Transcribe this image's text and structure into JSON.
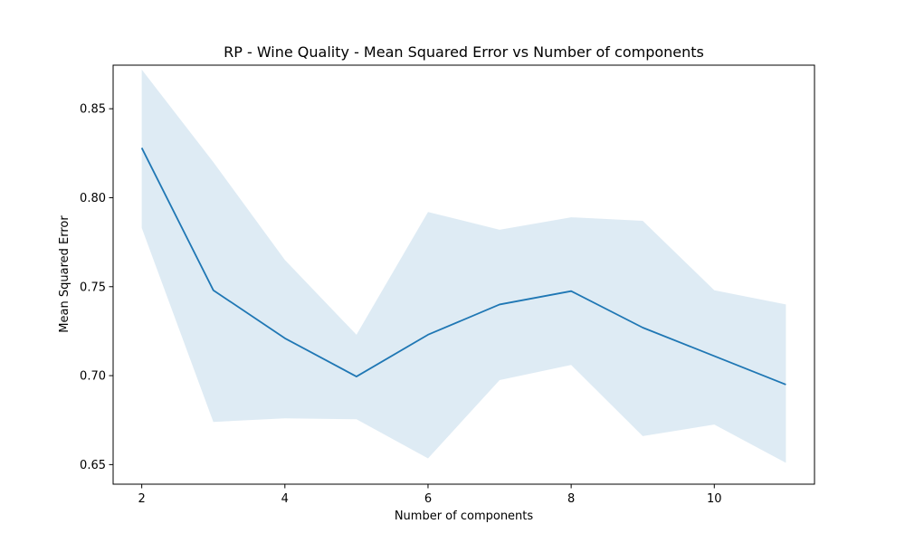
{
  "chart_data": {
    "type": "line",
    "title": "RP - Wine Quality - Mean Squared Error vs Number of components",
    "xlabel": "Number of components",
    "ylabel": "Mean Squared Error",
    "x": [
      2,
      3,
      4,
      5,
      6,
      7,
      8,
      9,
      10,
      11
    ],
    "series": [
      {
        "values": [
          0.828,
          0.748,
          0.721,
          0.6995,
          0.723,
          0.74,
          0.7475,
          0.727,
          0.711,
          0.695
        ],
        "band_upper": [
          0.872,
          0.82,
          0.765,
          0.723,
          0.792,
          0.782,
          0.789,
          0.787,
          0.748,
          0.74
        ],
        "band_lower": [
          0.783,
          0.674,
          0.676,
          0.6755,
          0.6535,
          0.6975,
          0.706,
          0.666,
          0.6725,
          0.651
        ]
      }
    ],
    "xlim": [
      1.6,
      11.4
    ],
    "ylim": [
      0.639,
      0.8745
    ],
    "xticks": [
      2,
      4,
      6,
      8,
      10
    ],
    "xtick_labels": [
      "2",
      "4",
      "6",
      "8",
      "10"
    ],
    "yticks": [
      0.65,
      0.7,
      0.75,
      0.8,
      0.85
    ],
    "ytick_labels": [
      "0.65",
      "0.70",
      "0.75",
      "0.80",
      "0.85"
    ],
    "grid": false,
    "colors": {
      "line": "#1f77b4",
      "band": "#1f77b4"
    }
  }
}
